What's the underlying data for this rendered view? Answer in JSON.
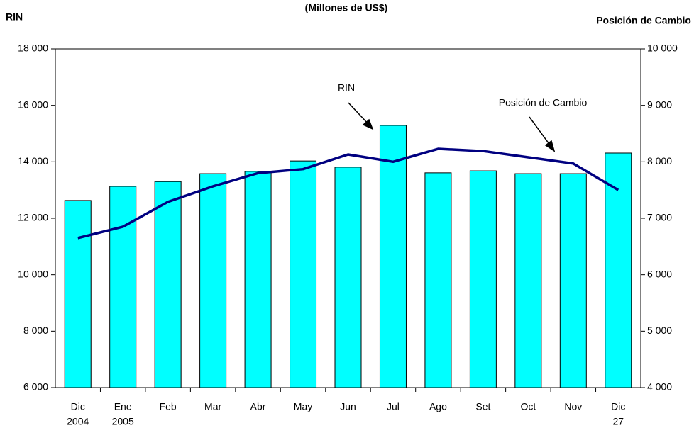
{
  "chart_data": {
    "type": "bar_line",
    "title": "(Millones de US$)",
    "y_label": "RIN",
    "y2_label": "Posición de Cambio",
    "categories": [
      [
        "Dic",
        "2004"
      ],
      [
        "Ene",
        "2005"
      ],
      [
        "Feb"
      ],
      [
        "Mar"
      ],
      [
        "Abr"
      ],
      [
        "May"
      ],
      [
        "Jun"
      ],
      [
        "Jul"
      ],
      [
        "Ago"
      ],
      [
        "Set"
      ],
      [
        "Oct"
      ],
      [
        "Nov"
      ],
      [
        "Dic",
        "27"
      ]
    ],
    "series": [
      {
        "name": "RIN",
        "type": "bar",
        "color": "#00ffff",
        "values": [
          12630,
          13130,
          13300,
          13580,
          13660,
          14030,
          13810,
          15290,
          13610,
          13680,
          13580,
          13580,
          14310
        ]
      },
      {
        "name": "Posición de Cambio",
        "type": "line",
        "axis": "y2",
        "color": "#000080",
        "values": [
          6650,
          6850,
          7290,
          7565,
          7800,
          7870,
          8130,
          8000,
          8230,
          8190,
          8080,
          7970,
          7500
        ]
      }
    ],
    "ylim": [
      6000,
      18000
    ],
    "yticks": [
      {
        "value": 6000,
        "label": "6 000"
      },
      {
        "value": 8000,
        "label": "8 000"
      },
      {
        "value": 10000,
        "label": "10 000"
      },
      {
        "value": 12000,
        "label": "12 000"
      },
      {
        "value": 14000,
        "label": "14 000"
      },
      {
        "value": 16000,
        "label": "16 000"
      },
      {
        "value": 18000,
        "label": "18 000"
      }
    ],
    "y2lim": [
      4000,
      10000
    ],
    "y2ticks": [
      {
        "value": 4000,
        "label": "4 000"
      },
      {
        "value": 5000,
        "label": "5 000"
      },
      {
        "value": 6000,
        "label": "6 000"
      },
      {
        "value": 7000,
        "label": "7 000"
      },
      {
        "value": 8000,
        "label": "8 000"
      },
      {
        "value": 9000,
        "label": "9 000"
      },
      {
        "value": 10000,
        "label": "10 000"
      }
    ]
  }
}
